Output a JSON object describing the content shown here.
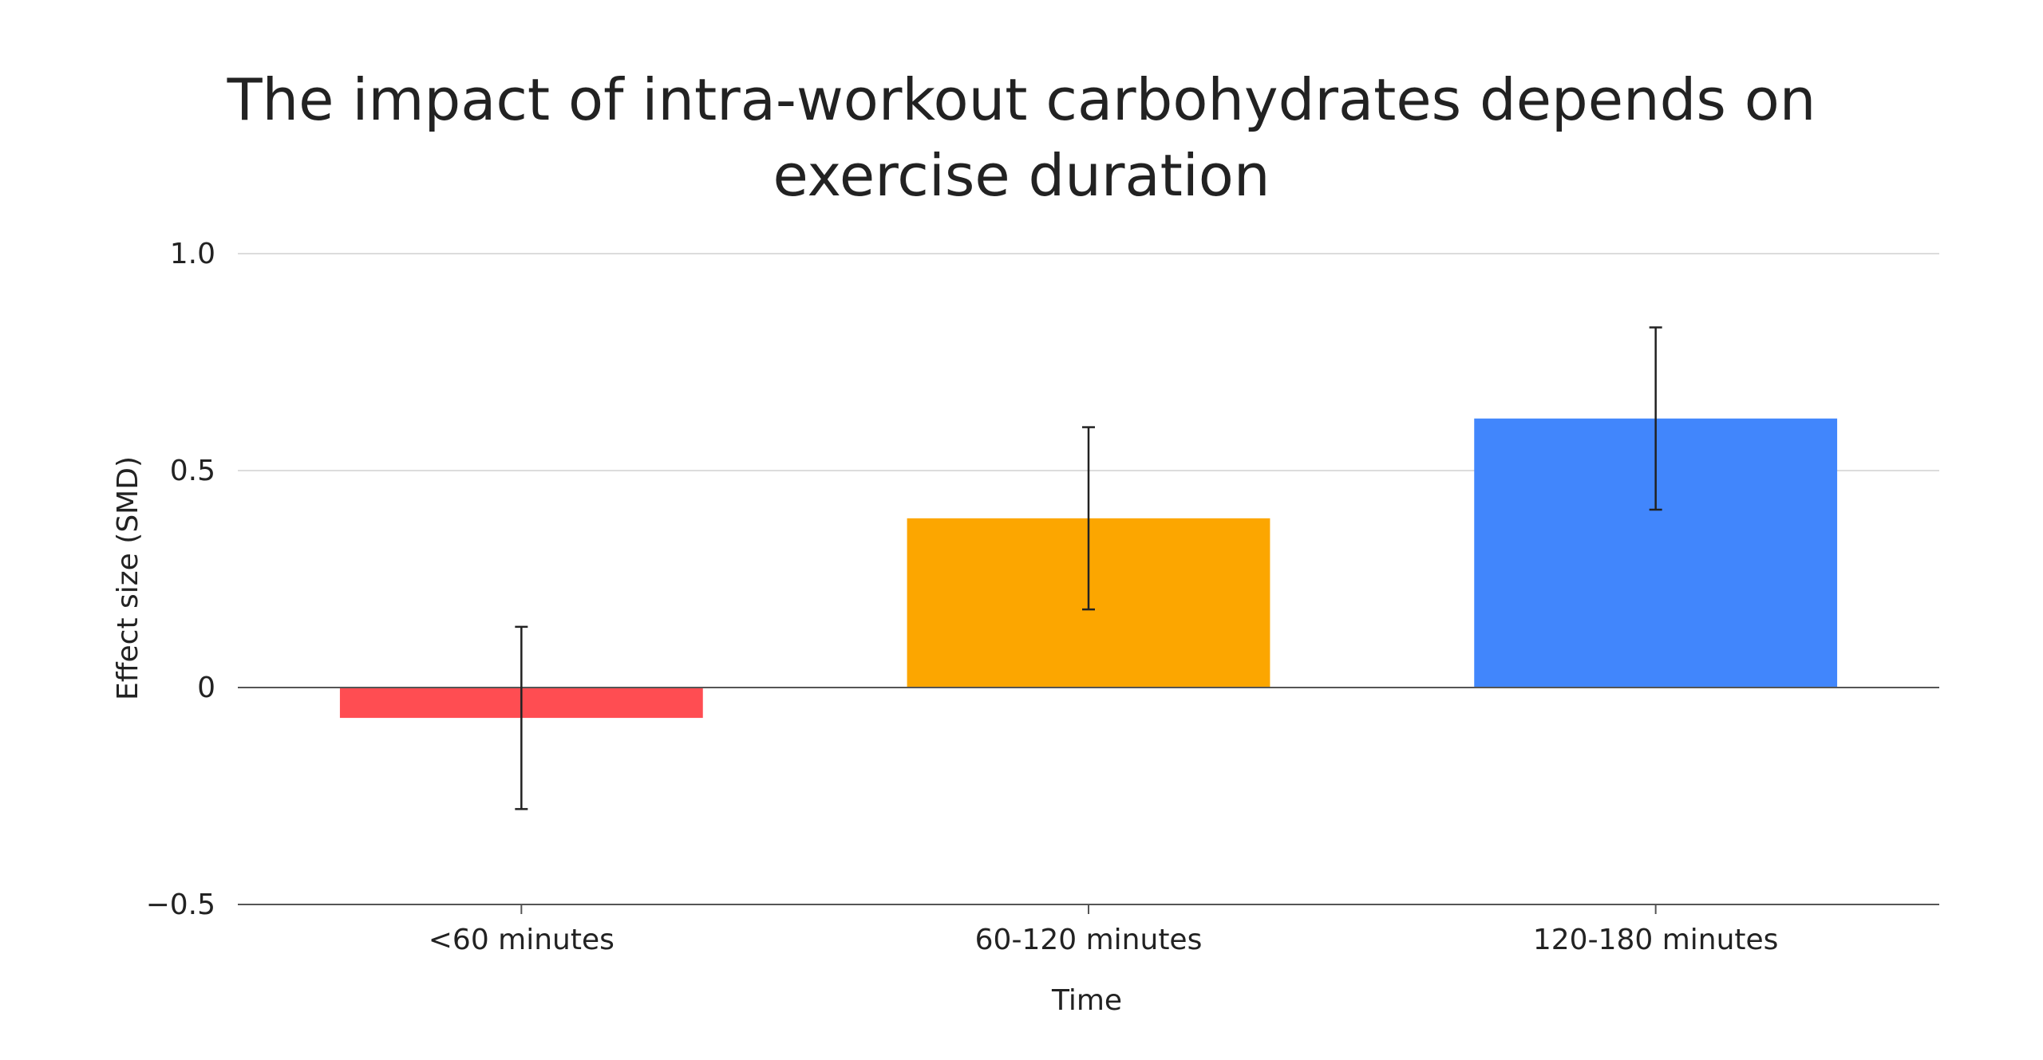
{
  "chart_data": {
    "type": "bar",
    "title_lines": [
      "The impact of intra-workout carbohydrates depends on",
      "exercise duration"
    ],
    "xlabel": "Time",
    "ylabel": "Effect size (SMD)",
    "categories": [
      "<60 minutes",
      "60-120 minutes",
      "120-180 minutes"
    ],
    "values": [
      -0.07,
      0.39,
      0.62
    ],
    "error_low": [
      -0.28,
      0.18,
      0.41
    ],
    "error_high": [
      0.14,
      0.6,
      0.83
    ],
    "bar_colors": [
      "#ff4d52",
      "#fca600",
      "#4186fc"
    ],
    "ylim": [
      -0.5,
      1.0
    ],
    "yticks": [
      1.0,
      0.5,
      0,
      -0.5
    ],
    "ytick_labels": [
      "1.0",
      "0.5",
      "0",
      "−0.5"
    ],
    "grid": true,
    "legend": "none"
  }
}
